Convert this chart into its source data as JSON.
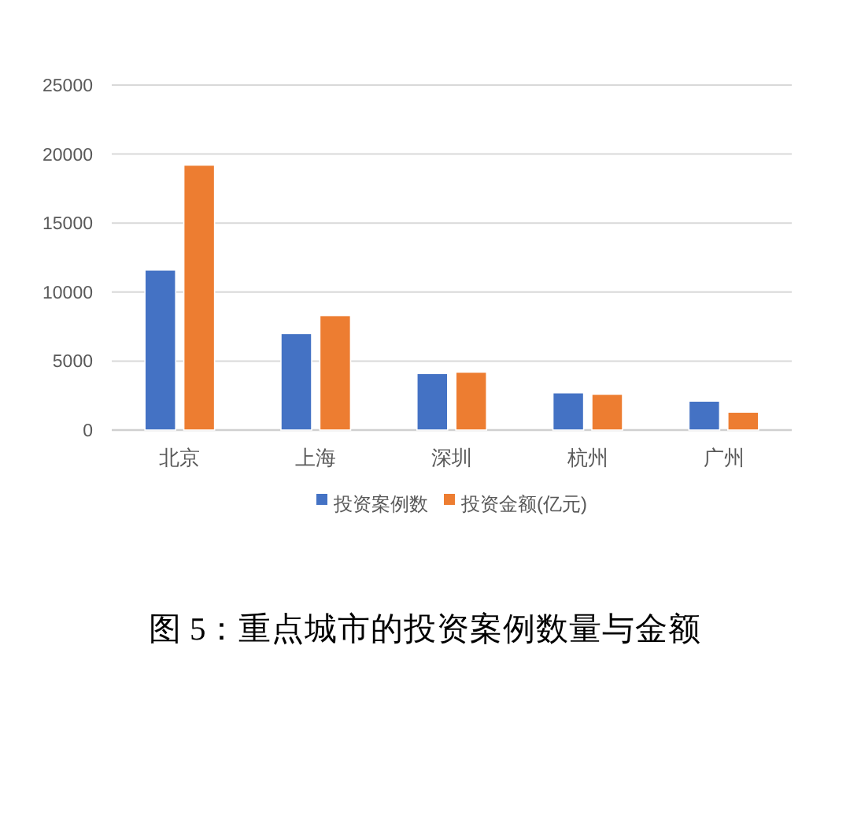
{
  "chart_data": {
    "type": "bar",
    "title": "图 5：重点城市的投资案例数量与金额",
    "categories": [
      "北京",
      "上海",
      "深圳",
      "杭州",
      "广州"
    ],
    "series": [
      {
        "name": "投资案例数",
        "color": "#4472c4",
        "values": [
          11600,
          7000,
          4100,
          2700,
          2100
        ]
      },
      {
        "name": "投资金额(亿元)",
        "color": "#ed7d31",
        "values": [
          19200,
          8300,
          4200,
          2600,
          1300
        ]
      }
    ],
    "ylim": [
      0,
      25000
    ],
    "yticks": [
      0,
      5000,
      10000,
      15000,
      20000,
      25000
    ],
    "grid": "y",
    "legend": "bottom"
  }
}
